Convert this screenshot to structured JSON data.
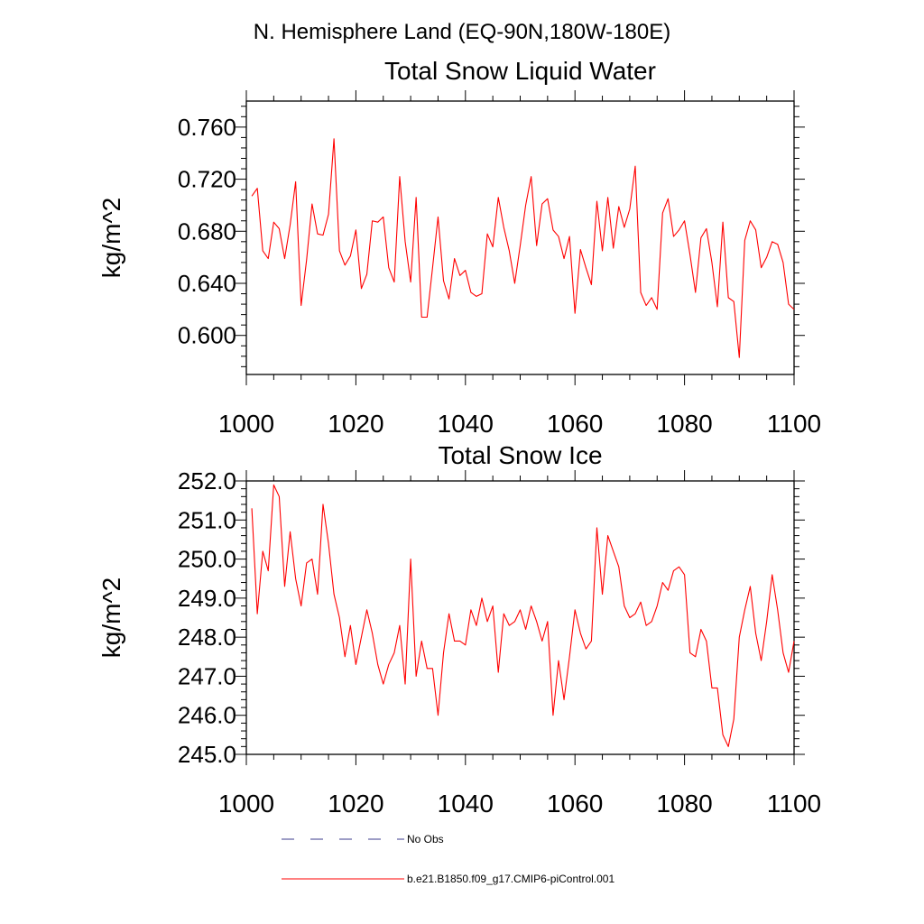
{
  "header": {
    "region_title": "N. Hemisphere Land (EQ-90N,180W-180E)"
  },
  "legend": {
    "items": [
      {
        "label": "No Obs",
        "color": "#3b3b8c",
        "style": "dashed"
      },
      {
        "label": "b.e21.B1850.f09_g17.CMIP6-piControl.001",
        "color": "#ff0000",
        "style": "solid"
      }
    ]
  },
  "chart_data": [
    {
      "type": "line",
      "title": "Total Snow Liquid Water",
      "xlabel": "",
      "ylabel": "kg/m^2",
      "xlim": [
        1000,
        1100
      ],
      "ylim": [
        0.57,
        0.78
      ],
      "xticks": [
        1000,
        1020,
        1040,
        1060,
        1080,
        1100
      ],
      "yticks": [
        0.6,
        0.64,
        0.68,
        0.72,
        0.76
      ],
      "ytick_labels": [
        "0.600",
        "0.640",
        "0.680",
        "0.720",
        "0.760"
      ],
      "x_start": 1001,
      "series": [
        {
          "color": "#ff0000",
          "values": [
            0.707,
            0.713,
            0.665,
            0.659,
            0.687,
            0.682,
            0.659,
            0.685,
            0.718,
            0.623,
            0.658,
            0.701,
            0.678,
            0.677,
            0.693,
            0.751,
            0.665,
            0.654,
            0.661,
            0.681,
            0.636,
            0.647,
            0.688,
            0.687,
            0.691,
            0.652,
            0.641,
            0.722,
            0.672,
            0.641,
            0.706,
            0.614,
            0.614,
            0.652,
            0.691,
            0.642,
            0.628,
            0.659,
            0.646,
            0.65,
            0.633,
            0.63,
            0.632,
            0.678,
            0.668,
            0.706,
            0.683,
            0.665,
            0.64,
            0.669,
            0.7,
            0.722,
            0.669,
            0.701,
            0.705,
            0.681,
            0.676,
            0.659,
            0.676,
            0.617,
            0.666,
            0.652,
            0.639,
            0.703,
            0.665,
            0.706,
            0.667,
            0.699,
            0.683,
            0.697,
            0.73,
            0.633,
            0.623,
            0.629,
            0.62,
            0.694,
            0.705,
            0.676,
            0.681,
            0.688,
            0.662,
            0.633,
            0.675,
            0.682,
            0.656,
            0.622,
            0.687,
            0.629,
            0.626,
            0.583,
            0.673,
            0.688,
            0.681,
            0.652,
            0.66,
            0.672,
            0.67,
            0.656,
            0.624,
            0.62
          ]
        }
      ]
    },
    {
      "type": "line",
      "title": "Total Snow Ice",
      "xlabel": "",
      "ylabel": "kg/m^2",
      "xlim": [
        1000,
        1100
      ],
      "ylim": [
        245.0,
        252.0
      ],
      "xticks": [
        1000,
        1020,
        1040,
        1060,
        1080,
        1100
      ],
      "yticks": [
        245.0,
        246.0,
        247.0,
        248.0,
        249.0,
        250.0,
        251.0,
        252.0
      ],
      "ytick_labels": [
        "245.0",
        "246.0",
        "247.0",
        "248.0",
        "249.0",
        "250.0",
        "251.0",
        "252.0"
      ],
      "x_start": 1001,
      "series": [
        {
          "color": "#ff0000",
          "values": [
            251.3,
            248.6,
            250.2,
            249.7,
            251.9,
            251.6,
            249.3,
            250.7,
            249.5,
            248.8,
            249.9,
            250.0,
            249.1,
            251.4,
            250.4,
            249.1,
            248.5,
            247.5,
            248.3,
            247.3,
            248.0,
            248.7,
            248.1,
            247.3,
            246.8,
            247.3,
            247.6,
            248.3,
            246.8,
            250.0,
            247.0,
            247.9,
            247.2,
            247.2,
            246.0,
            247.6,
            248.6,
            247.9,
            247.9,
            247.8,
            248.7,
            248.3,
            249.0,
            248.4,
            248.8,
            247.1,
            248.6,
            248.3,
            248.4,
            248.7,
            248.2,
            248.8,
            248.4,
            247.9,
            248.4,
            246.0,
            247.4,
            246.4,
            247.5,
            248.7,
            248.1,
            247.7,
            247.9,
            250.8,
            249.1,
            250.6,
            250.2,
            249.8,
            248.8,
            248.5,
            248.6,
            248.9,
            248.3,
            248.4,
            248.8,
            249.4,
            249.2,
            249.7,
            249.8,
            249.6,
            247.6,
            247.5,
            248.2,
            247.9,
            246.7,
            246.7,
            245.5,
            245.2,
            245.9,
            248.0,
            248.7,
            249.3,
            248.1,
            247.4,
            248.4,
            249.6,
            248.7,
            247.6,
            247.1,
            247.9
          ]
        }
      ]
    }
  ]
}
